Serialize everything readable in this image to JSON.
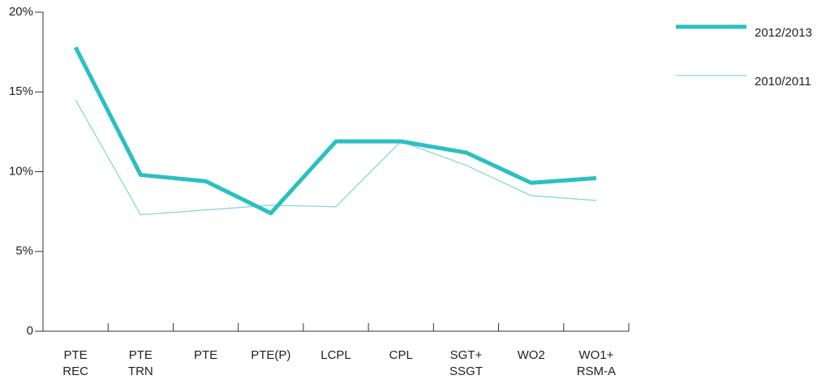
{
  "chart_data": {
    "type": "line",
    "categories": [
      [
        "PTE",
        "REC"
      ],
      [
        "PTE",
        "TRN"
      ],
      [
        "PTE"
      ],
      [
        "PTE(P)"
      ],
      [
        "LCPL"
      ],
      [
        "CPL"
      ],
      [
        "SGT+",
        "SSGT"
      ],
      [
        "WO2"
      ],
      [
        "WO1+",
        "RSM-A"
      ]
    ],
    "series": [
      {
        "name": "2012/2013",
        "color": "#2bbfc0",
        "width": 5,
        "values": [
          17.8,
          9.8,
          9.4,
          7.4,
          11.9,
          11.9,
          11.2,
          9.3,
          9.6
        ]
      },
      {
        "name": "2010/2011",
        "color": "#7fd4d4",
        "width": 1.2,
        "values": [
          14.5,
          7.3,
          7.6,
          7.9,
          7.8,
          11.9,
          10.4,
          8.5,
          8.2
        ]
      }
    ],
    "ylim": [
      0,
      20
    ],
    "yticks": [
      0,
      {
        "value": 5,
        "label": "5%"
      },
      {
        "value": 10,
        "label": "10%"
      },
      {
        "value": 15,
        "label": "15%"
      },
      {
        "value": 20,
        "label": "20%"
      }
    ],
    "grid": false,
    "legend": "top-right"
  }
}
